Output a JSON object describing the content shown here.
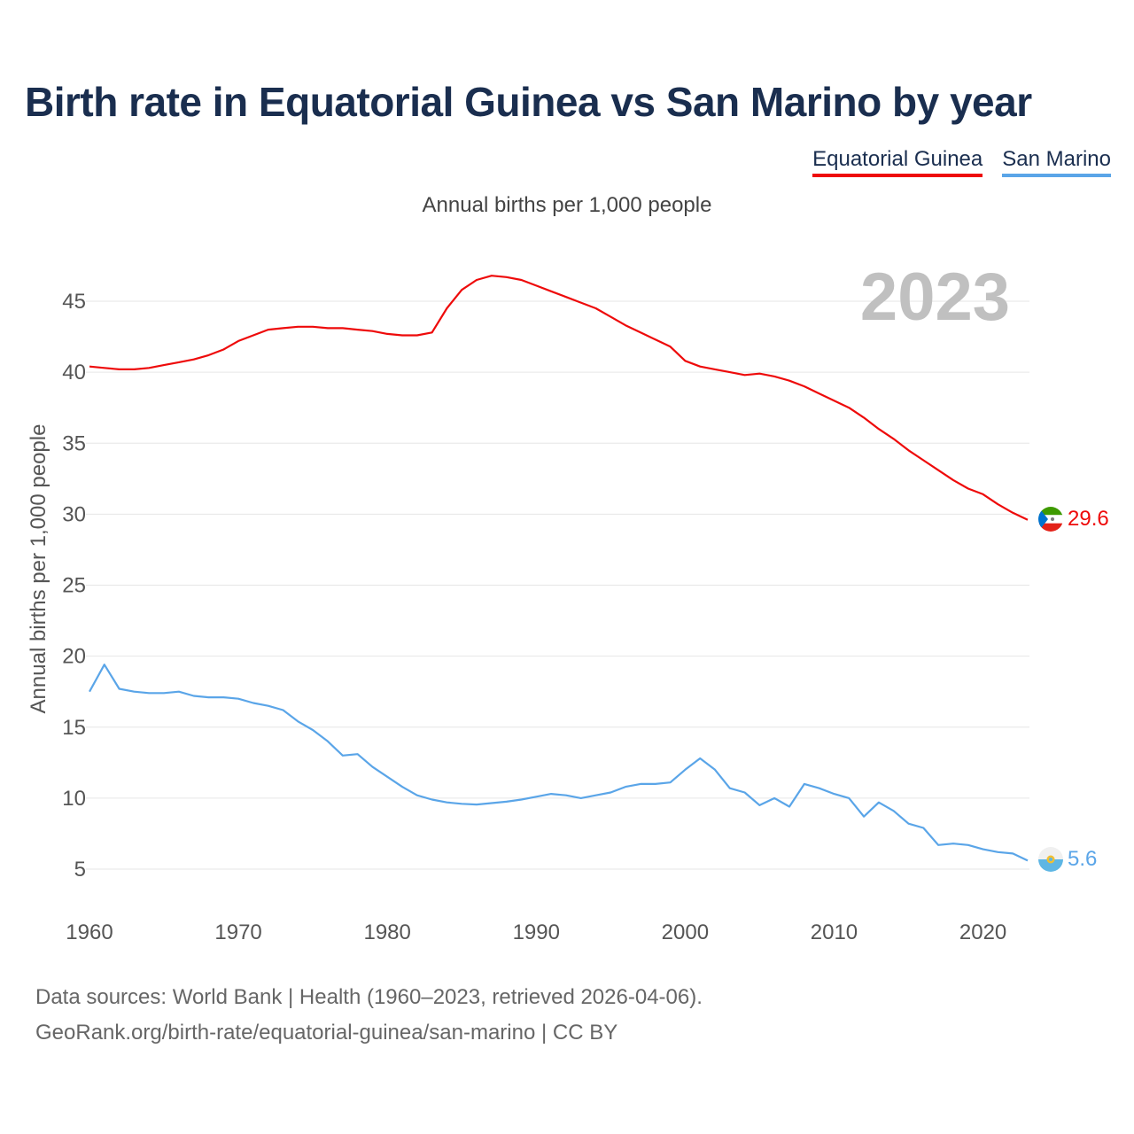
{
  "title": "Birth rate in Equatorial Guinea vs San Marino by year",
  "subtitle": "Annual births per 1,000 people",
  "legend": [
    {
      "label": "Equatorial Guinea",
      "color": "#ee0a0a"
    },
    {
      "label": "San Marino",
      "color": "#5aa5e8"
    }
  ],
  "year_label": "2023",
  "source_line1": "Data sources: World Bank | Health (1960–2023, retrieved 2026-04-06).",
  "source_line2": "GeoRank.org/birth-rate/equatorial-guinea/san-marino | CC BY",
  "chart_data": {
    "type": "line",
    "title": "Birth rate in Equatorial Guinea vs San Marino by year",
    "xlabel": "",
    "ylabel": "Annual births per 1,000 people",
    "xlim": [
      1960,
      2023
    ],
    "ylim": [
      2,
      48
    ],
    "x_ticks": [
      1960,
      1970,
      1980,
      1990,
      2000,
      2010,
      2020
    ],
    "y_ticks": [
      5,
      10,
      15,
      20,
      25,
      30,
      35,
      40,
      45
    ],
    "grid": true,
    "legend_position": "top-right",
    "x": [
      1960,
      1961,
      1962,
      1963,
      1964,
      1965,
      1966,
      1967,
      1968,
      1969,
      1970,
      1971,
      1972,
      1973,
      1974,
      1975,
      1976,
      1977,
      1978,
      1979,
      1980,
      1981,
      1982,
      1983,
      1984,
      1985,
      1986,
      1987,
      1988,
      1989,
      1990,
      1991,
      1992,
      1993,
      1994,
      1995,
      1996,
      1997,
      1998,
      1999,
      2000,
      2001,
      2002,
      2003,
      2004,
      2005,
      2006,
      2007,
      2008,
      2009,
      2010,
      2011,
      2012,
      2013,
      2014,
      2015,
      2016,
      2017,
      2018,
      2019,
      2020,
      2021,
      2022,
      2023
    ],
    "series": [
      {
        "name": "Equatorial Guinea",
        "color": "#ee0a0a",
        "end_label": "29.6",
        "values": [
          40.4,
          40.3,
          40.2,
          40.2,
          40.3,
          40.5,
          40.7,
          40.9,
          41.2,
          41.6,
          42.2,
          42.6,
          43.0,
          43.1,
          43.2,
          43.2,
          43.1,
          43.1,
          43.0,
          42.9,
          42.7,
          42.6,
          42.6,
          42.8,
          44.5,
          45.8,
          46.5,
          46.8,
          46.7,
          46.5,
          46.1,
          45.7,
          45.3,
          44.9,
          44.5,
          43.9,
          43.3,
          42.8,
          42.3,
          41.8,
          40.8,
          40.4,
          40.2,
          40.0,
          39.8,
          39.9,
          39.7,
          39.4,
          39.0,
          38.5,
          38.0,
          37.5,
          36.8,
          36.0,
          35.3,
          34.5,
          33.8,
          33.1,
          32.4,
          31.8,
          31.4,
          30.7,
          30.1,
          29.6
        ]
      },
      {
        "name": "San Marino",
        "color": "#5aa5e8",
        "end_label": "5.6",
        "values": [
          17.5,
          19.4,
          17.7,
          17.5,
          17.4,
          17.4,
          17.5,
          17.2,
          17.1,
          17.1,
          17.0,
          16.7,
          16.5,
          16.2,
          15.4,
          14.8,
          14.0,
          13.0,
          13.1,
          12.2,
          11.5,
          10.8,
          10.2,
          9.9,
          9.7,
          9.6,
          9.55,
          9.65,
          9.75,
          9.9,
          10.1,
          10.3,
          10.2,
          10.0,
          10.2,
          10.4,
          10.8,
          11.0,
          11.0,
          11.1,
          12.0,
          12.8,
          12.0,
          10.7,
          10.4,
          9.5,
          10.0,
          9.4,
          11.0,
          10.7,
          10.3,
          10.0,
          8.7,
          9.7,
          9.1,
          8.2,
          7.9,
          6.7,
          6.8,
          6.7,
          6.4,
          6.2,
          6.1,
          5.6
        ]
      }
    ]
  },
  "icons": {
    "eq_guinea_flag": "equatorial-guinea-flag-icon",
    "san_marino_flag": "san-marino-flag-icon"
  }
}
